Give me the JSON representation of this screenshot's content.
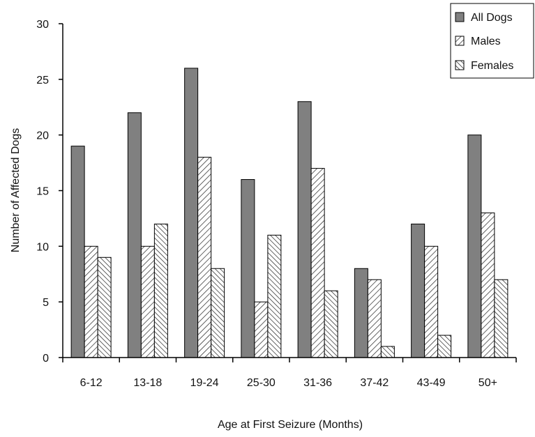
{
  "chart_data": {
    "type": "bar",
    "title": "",
    "xlabel": "Age at First Seizure (Months)",
    "ylabel": "Number of Affected Dogs",
    "ylim": [
      0,
      30
    ],
    "yticks": [
      "0",
      "5",
      "10",
      "15",
      "20",
      "25",
      "30"
    ],
    "categories": [
      "6-12",
      "13-18",
      "19-24",
      "25-30",
      "31-36",
      "37-42",
      "43-49",
      "50+"
    ],
    "series": [
      {
        "name": "All Dogs",
        "values": [
          19,
          22,
          26,
          16,
          23,
          8,
          12,
          20
        ],
        "color": "#808080",
        "pattern": "solid-gray"
      },
      {
        "name": "Males",
        "values": [
          10,
          10,
          18,
          5,
          17,
          7,
          10,
          13
        ],
        "color": "#ffffff",
        "pattern": "forward-diagonal-hatch"
      },
      {
        "name": "Females",
        "values": [
          9,
          12,
          8,
          11,
          6,
          1,
          2,
          7
        ],
        "color": "#ffffff",
        "pattern": "backward-diagonal-hatch"
      }
    ],
    "grid": false,
    "legend_position": "top-right"
  }
}
